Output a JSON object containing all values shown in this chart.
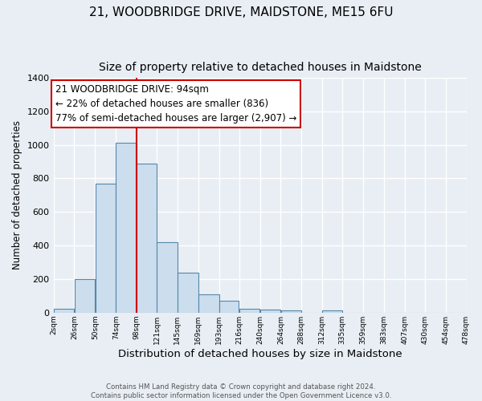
{
  "title": "21, WOODBRIDGE DRIVE, MAIDSTONE, ME15 6FU",
  "subtitle": "Size of property relative to detached houses in Maidstone",
  "xlabel": "Distribution of detached houses by size in Maidstone",
  "ylabel": "Number of detached properties",
  "bar_left_edges": [
    2,
    26,
    50,
    74,
    98,
    121,
    145,
    169,
    193,
    216,
    240,
    264,
    288,
    312,
    335,
    359,
    383,
    407,
    430,
    454
  ],
  "bar_widths": [
    24,
    24,
    24,
    24,
    23,
    24,
    24,
    24,
    23,
    24,
    24,
    24,
    24,
    23,
    24,
    24,
    24,
    23,
    24,
    24
  ],
  "bar_heights": [
    25,
    200,
    770,
    1010,
    890,
    420,
    240,
    110,
    70,
    25,
    20,
    15,
    0,
    15,
    0,
    0,
    0,
    0,
    0,
    0
  ],
  "bar_color": "#ccdded",
  "bar_edge_color": "#5588aa",
  "tick_labels": [
    "2sqm",
    "26sqm",
    "50sqm",
    "74sqm",
    "98sqm",
    "121sqm",
    "145sqm",
    "169sqm",
    "193sqm",
    "216sqm",
    "240sqm",
    "264sqm",
    "288sqm",
    "312sqm",
    "335sqm",
    "359sqm",
    "383sqm",
    "407sqm",
    "430sqm",
    "454sqm",
    "478sqm"
  ],
  "vline_color": "#cc0000",
  "vline_x": 98,
  "annotation_text": "21 WOODBRIDGE DRIVE: 94sqm\n← 22% of detached houses are smaller (836)\n77% of semi-detached houses are larger (2,907) →",
  "annotation_box_color": "#ffffff",
  "annotation_box_edge": "#cc0000",
  "annotation_fontsize": 8.5,
  "ylim": [
    0,
    1400
  ],
  "yticks": [
    0,
    200,
    400,
    600,
    800,
    1000,
    1200,
    1400
  ],
  "xlim_left": 2,
  "xlim_right": 478,
  "background_color": "#e8eef4",
  "grid_color": "#ffffff",
  "footer_line1": "Contains HM Land Registry data © Crown copyright and database right 2024.",
  "footer_line2": "Contains public sector information licensed under the Open Government Licence v3.0.",
  "title_fontsize": 11,
  "subtitle_fontsize": 10,
  "xlabel_fontsize": 9.5,
  "ylabel_fontsize": 8.5
}
